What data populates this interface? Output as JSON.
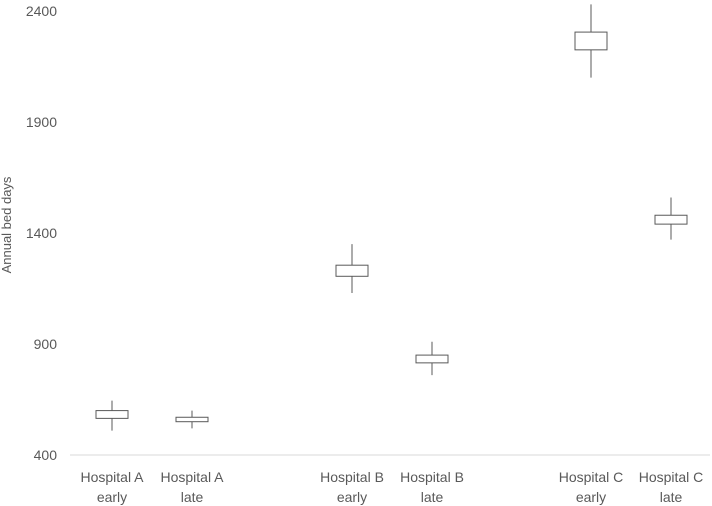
{
  "chart_data": {
    "type": "boxplot",
    "title": "",
    "ylabel": "Annual bed days",
    "xlabel": "",
    "ylim": [
      400,
      2400
    ],
    "yticks": [
      400,
      900,
      1400,
      1900,
      2400
    ],
    "grid": false,
    "categories": [
      {
        "line1": "Hospital A",
        "line2": "early",
        "group": 0
      },
      {
        "line1": "Hospital A",
        "line2": "late",
        "group": 0
      },
      {
        "line1": "Hospital B",
        "line2": "early",
        "group": 1
      },
      {
        "line1": "Hospital B",
        "line2": "late",
        "group": 1
      },
      {
        "line1": "Hospital C",
        "line2": "early",
        "group": 2
      },
      {
        "line1": "Hospital C",
        "line2": "late",
        "group": 2
      }
    ],
    "boxes": [
      {
        "min": 510,
        "q1": 565,
        "q3": 600,
        "max": 645
      },
      {
        "min": 520,
        "q1": 550,
        "q3": 570,
        "max": 600
      },
      {
        "min": 1130,
        "q1": 1205,
        "q3": 1255,
        "max": 1350
      },
      {
        "min": 760,
        "q1": 815,
        "q3": 850,
        "max": 910
      },
      {
        "min": 2100,
        "q1": 2225,
        "q3": 2305,
        "max": 2430
      },
      {
        "min": 1370,
        "q1": 1440,
        "q3": 1480,
        "max": 1560
      }
    ],
    "colors": {
      "box_stroke": "#595959",
      "axis": "#d9d9d9",
      "text": "#595959",
      "fill": "#ffffff"
    }
  }
}
